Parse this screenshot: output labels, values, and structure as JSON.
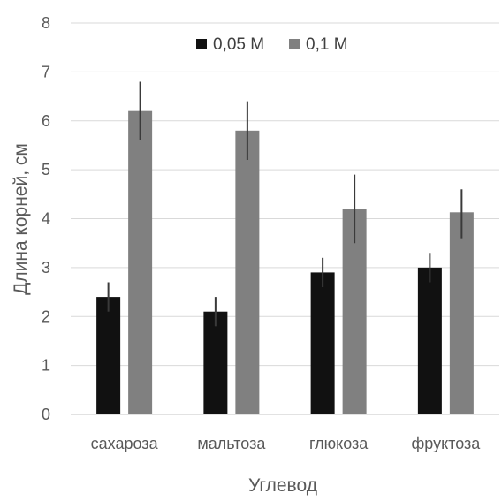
{
  "chart_data": {
    "type": "bar",
    "title": "",
    "xlabel": "Углевод",
    "ylabel": "Длина корней, см",
    "categories": [
      "сахароза",
      "мальтоза",
      "глюкоза",
      "фруктоза"
    ],
    "ylim": [
      0,
      8
    ],
    "yticks": [
      "0",
      "1",
      "2",
      "3",
      "4",
      "5",
      "6",
      "7",
      "8"
    ],
    "grid": true,
    "legend_position": "top",
    "error_bars": true,
    "series": [
      {
        "name": "0,05 М",
        "color": "#111111",
        "values": [
          2.4,
          2.1,
          2.9,
          3.0
        ],
        "err_low": [
          2.1,
          1.8,
          2.6,
          2.7
        ],
        "err_high": [
          2.7,
          2.4,
          3.2,
          3.3
        ]
      },
      {
        "name": "0,1 М",
        "color": "#808080",
        "values": [
          6.2,
          5.8,
          4.2,
          4.13
        ],
        "err_low": [
          5.6,
          5.2,
          3.5,
          3.6
        ],
        "err_high": [
          6.8,
          6.4,
          4.9,
          4.6
        ]
      }
    ]
  }
}
